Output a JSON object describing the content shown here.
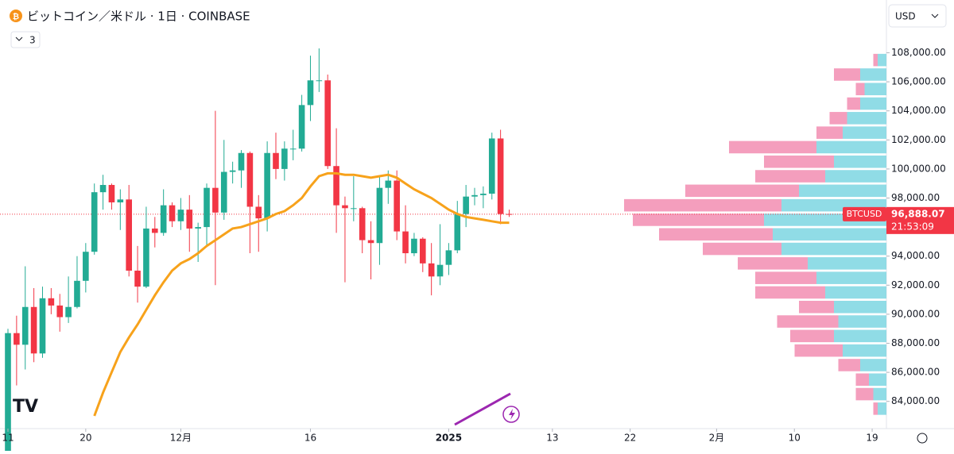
{
  "chart_data": {
    "type": "candlestick",
    "title": "ビットコイン／米ドル · 1日 · COINBASE",
    "indicator_count": "3",
    "currency": "USD",
    "symbol": "BTCUSD",
    "last_price": 96888.07,
    "last_price_label": "96,888.07",
    "countdown": "21:53:09",
    "up_color": "#22ab94",
    "down_color": "#f23645",
    "open": [
      80400,
      88700,
      87900,
      90500,
      87300,
      91100,
      90600,
      89800,
      90500,
      92300,
      94300,
      98400,
      98900,
      97700,
      97900,
      93000,
      91900,
      95900,
      95600,
      97500,
      96400,
      97200,
      95900,
      96000,
      98700,
      97000,
      99800,
      99900,
      101100,
      97400,
      96600,
      101100,
      100000,
      101400,
      101400,
      104400,
      106100,
      106100,
      100200,
      97500,
      97300,
      97300,
      95100,
      94900,
      98700,
      99200,
      95700,
      94200,
      95200,
      93500,
      92600,
      93400,
      94400,
      96900,
      98100,
      98200,
      98300,
      102100,
      96900
    ],
    "high": [
      89000,
      89900,
      93300,
      91800,
      91900,
      91800,
      91400,
      92600,
      94000,
      94900,
      99000,
      99600,
      99000,
      98600,
      98900,
      94700,
      97400,
      96700,
      98600,
      97700,
      98000,
      98200,
      96300,
      99000,
      104000,
      102000,
      100500,
      101300,
      101200,
      98200,
      101900,
      102500,
      101900,
      102700,
      105100,
      107800,
      108300,
      106500,
      102800,
      98100,
      99500,
      97400,
      96400,
      99500,
      99900,
      99900,
      97500,
      95600,
      95300,
      94900,
      96200,
      94900,
      97800,
      98900,
      98700,
      98800,
      102500,
      102700,
      97200
    ],
    "low": [
      80200,
      85100,
      86200,
      86700,
      87000,
      90000,
      88800,
      89400,
      90400,
      91500,
      94100,
      97200,
      97200,
      95800,
      92600,
      90800,
      91800,
      94600,
      95400,
      96000,
      95800,
      94300,
      93600,
      94700,
      92000,
      96500,
      99000,
      98700,
      94200,
      94300,
      95700,
      99300,
      99200,
      100600,
      101200,
      103300,
      105300,
      100000,
      95600,
      92200,
      96400,
      94200,
      92400,
      93400,
      97600,
      95100,
      93500,
      94000,
      92900,
      91300,
      92000,
      92700,
      94200,
      96000,
      97500,
      97300,
      97900,
      96200,
      96700
    ],
    "close": [
      88700,
      87900,
      90500,
      87300,
      91100,
      90600,
      89800,
      90500,
      92300,
      94300,
      98400,
      98900,
      97700,
      97900,
      93000,
      91900,
      95900,
      95600,
      97500,
      96400,
      97200,
      95900,
      96000,
      98700,
      97000,
      99800,
      99900,
      101100,
      97400,
      96600,
      101100,
      100000,
      101400,
      101400,
      104400,
      106100,
      106100,
      100200,
      97500,
      97300,
      97300,
      95100,
      94900,
      98700,
      99200,
      95700,
      94200,
      95200,
      93500,
      92600,
      93400,
      94400,
      96900,
      98100,
      98200,
      98300,
      102100,
      96900,
      96888
    ],
    "moving_average": {
      "color": "#f7a21b",
      "values": [
        null,
        null,
        null,
        null,
        null,
        null,
        null,
        null,
        null,
        null,
        83000,
        84600,
        86000,
        87400,
        88400,
        89300,
        90300,
        91300,
        92200,
        93000,
        93500,
        93800,
        94200,
        94700,
        95100,
        95500,
        95900,
        96000,
        96200,
        96400,
        96600,
        96900,
        97100,
        97500,
        98000,
        98800,
        99500,
        99700,
        99700,
        99600,
        99600,
        99500,
        99400,
        99500,
        99600,
        99400,
        99000,
        98600,
        98300,
        98000,
        97600,
        97200,
        96900,
        96700,
        96600,
        96500,
        96400,
        96300,
        96300
      ]
    },
    "volume_profile": {
      "up_color": "#7dd6e2",
      "down_color": "#f28db2",
      "prices": [
        83500,
        84500,
        85500,
        86500,
        87500,
        88500,
        89500,
        90500,
        91500,
        92500,
        93500,
        94500,
        95500,
        96500,
        97500,
        98500,
        99500,
        100500,
        101500,
        102500,
        103500,
        104500,
        105500,
        106500,
        107500
      ],
      "up": [
        10,
        15,
        20,
        30,
        50,
        60,
        55,
        60,
        70,
        80,
        90,
        120,
        130,
        140,
        120,
        100,
        70,
        60,
        80,
        50,
        45,
        30,
        25,
        30,
        10
      ],
      "down": [
        5,
        20,
        15,
        25,
        55,
        50,
        70,
        40,
        80,
        70,
        80,
        90,
        130,
        150,
        180,
        130,
        80,
        80,
        100,
        30,
        20,
        15,
        10,
        30,
        5
      ]
    },
    "xlim": [
      -0.92,
      101.65
    ],
    "xticks": [
      {
        "value": 0,
        "label": "11"
      },
      {
        "value": 9,
        "label": "20"
      },
      {
        "value": 20,
        "label": "12月"
      },
      {
        "value": 35,
        "label": "16"
      },
      {
        "value": 51,
        "label": "2025"
      },
      {
        "value": 63,
        "label": "13"
      },
      {
        "value": 72,
        "label": "22"
      },
      {
        "value": 82,
        "label": "2月"
      },
      {
        "value": 91,
        "label": "10"
      },
      {
        "value": 100,
        "label": "19"
      }
    ],
    "ylim": [
      82400,
      108900
    ],
    "yticks": [
      {
        "value": 84000,
        "label": "84,000.00"
      },
      {
        "value": 86000,
        "label": "86,000.00"
      },
      {
        "value": 88000,
        "label": "88,000.00"
      },
      {
        "value": 90000,
        "label": "90,000.00"
      },
      {
        "value": 92000,
        "label": "92,000.00"
      },
      {
        "value": 94000,
        "label": "94,000.00"
      },
      {
        "value": 96000,
        "label": "96,000.00"
      },
      {
        "value": 98000,
        "label": "98,000.00"
      },
      {
        "value": 100000,
        "label": "100,000.00"
      },
      {
        "value": 102000,
        "label": "102,000.00"
      },
      {
        "value": 104000,
        "label": "104,000.00"
      },
      {
        "value": 106000,
        "label": "106,000.00"
      },
      {
        "value": 108000,
        "label": "108,000.00"
      }
    ]
  }
}
